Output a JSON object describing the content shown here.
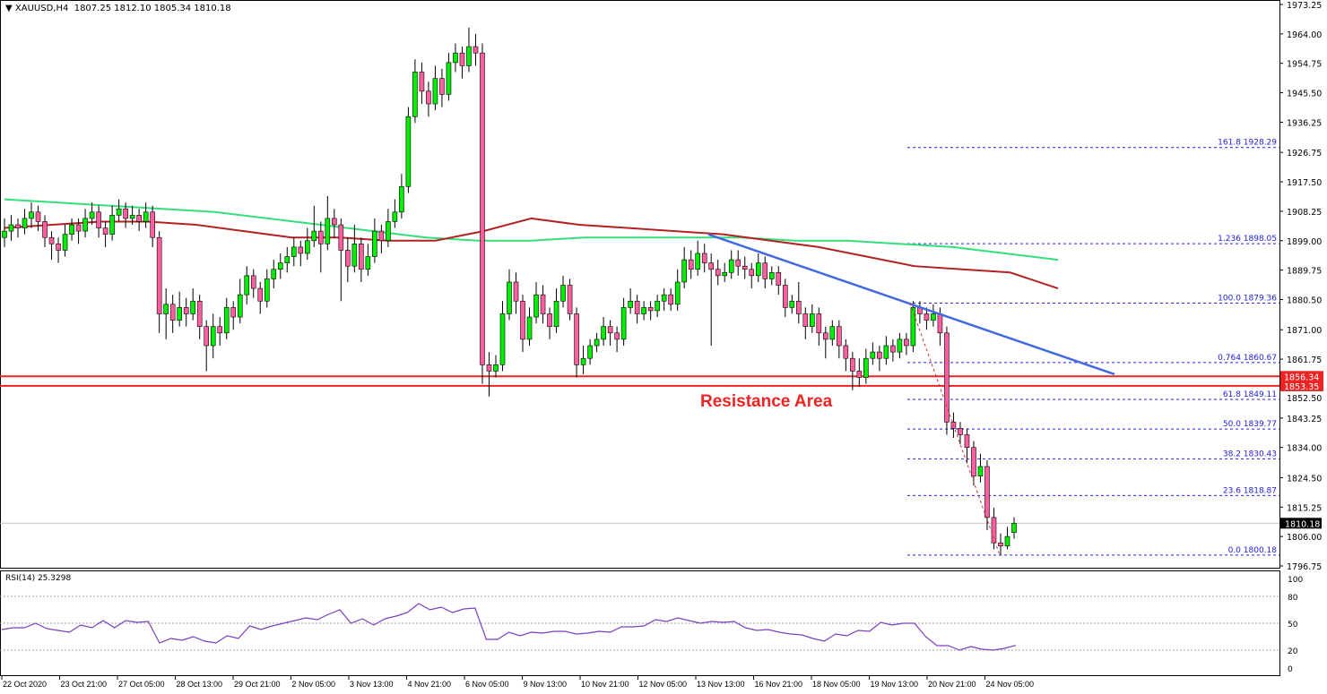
{
  "header": {
    "symbol": "XAUUSD,H4",
    "ohlc": "1807.25 1812.10 1805.34 1810.18"
  },
  "annotation": "Resistance Area",
  "rsi_label": "RSI(14) 25.3298",
  "colors": {
    "bull": "#00ee00",
    "bear": "#ff5fa0",
    "ma_red": "#b22222",
    "ma_green": "#32e07a",
    "trendline": "#4169e1",
    "fib": "#2020e0",
    "resistance": "#ee2424",
    "rsi": "#7b3fbf"
  },
  "chart_data": {
    "type": "candlestick",
    "title": "XAUUSD,H4",
    "ylim": [
      1796.75,
      1973.25
    ],
    "y_ticks": [
      "1973.25",
      "1964.00",
      "1954.75",
      "1945.50",
      "1936.25",
      "1926.75",
      "1917.50",
      "1908.25",
      "1899.00",
      "1889.75",
      "1880.50",
      "1871.00",
      "1861.75",
      "1852.50",
      "1843.25",
      "1834.00",
      "1824.50",
      "1815.25",
      "1806.00",
      "1796.75"
    ],
    "x_ticks": [
      "22 Oct 2020",
      "23 Oct 21:00",
      "27 Oct 05:00",
      "28 Oct 13:00",
      "29 Oct 21:00",
      "2 Nov 05:00",
      "3 Nov 13:00",
      "4 Nov 21:00",
      "6 Nov 05:00",
      "9 Nov 13:00",
      "10 Nov 21:00",
      "12 Nov 05:00",
      "13 Nov 13:00",
      "16 Nov 21:00",
      "18 Nov 05:00",
      "19 Nov 13:00",
      "20 Nov 21:00",
      "24 Nov 05:00"
    ],
    "current_price": "1810.18",
    "resistance_lines": [
      {
        "price": 1856.34,
        "label": "1856.34"
      },
      {
        "price": 1853.35,
        "label": "1853.35"
      }
    ],
    "fib_levels": [
      {
        "price": 1928.29,
        "label": "161.8 1928.29"
      },
      {
        "price": 1898.05,
        "label": "1.236 1898.05"
      },
      {
        "price": 1879.36,
        "label": "100.0 1879.36"
      },
      {
        "price": 1860.67,
        "label": "0.764 1860.67"
      },
      {
        "price": 1849.11,
        "label": "61.8 1849.11"
      },
      {
        "price": 1839.77,
        "label": "50.0 1839.77"
      },
      {
        "price": 1830.43,
        "label": "38.2 1830.43"
      },
      {
        "price": 1818.87,
        "label": "23.6 1818.87"
      },
      {
        "price": 1800.18,
        "label": "0.0 1800.18"
      }
    ],
    "trendline": {
      "from_price": 1901,
      "to_price": 1857
    },
    "fib_swing": {
      "from_price": 1879.36,
      "to_price": 1800.18
    },
    "candles": [
      [
        1900,
        1906,
        1897,
        1902
      ],
      [
        1902,
        1907,
        1899,
        1904
      ],
      [
        1904,
        1906,
        1900,
        1903
      ],
      [
        1903,
        1909,
        1901,
        1906
      ],
      [
        1906,
        1911,
        1903,
        1908
      ],
      [
        1908,
        1910,
        1902,
        1905
      ],
      [
        1905,
        1907,
        1897,
        1900
      ],
      [
        1900,
        1902,
        1893,
        1898
      ],
      [
        1898,
        1900,
        1892,
        1896
      ],
      [
        1896,
        1904,
        1894,
        1901
      ],
      [
        1901,
        1906,
        1899,
        1904
      ],
      [
        1904,
        1906,
        1898,
        1902
      ],
      [
        1902,
        1909,
        1900,
        1906
      ],
      [
        1906,
        1911,
        1904,
        1908
      ],
      [
        1908,
        1910,
        1900,
        1903
      ],
      [
        1903,
        1905,
        1897,
        1901
      ],
      [
        1901,
        1910,
        1899,
        1907
      ],
      [
        1907,
        1912,
        1905,
        1909
      ],
      [
        1909,
        1911,
        1903,
        1906
      ],
      [
        1906,
        1910,
        1904,
        1907
      ],
      [
        1907,
        1909,
        1902,
        1905
      ],
      [
        1905,
        1911,
        1903,
        1908
      ],
      [
        1908,
        1910,
        1897,
        1900
      ],
      [
        1900,
        1902,
        1870,
        1876
      ],
      [
        1876,
        1884,
        1868,
        1879
      ],
      [
        1879,
        1882,
        1870,
        1874
      ],
      [
        1874,
        1883,
        1872,
        1878
      ],
      [
        1878,
        1881,
        1872,
        1876
      ],
      [
        1876,
        1884,
        1874,
        1880
      ],
      [
        1880,
        1882,
        1868,
        1872
      ],
      [
        1872,
        1874,
        1858,
        1866
      ],
      [
        1866,
        1876,
        1862,
        1872
      ],
      [
        1872,
        1875,
        1866,
        1870
      ],
      [
        1870,
        1881,
        1868,
        1878
      ],
      [
        1878,
        1880,
        1871,
        1875
      ],
      [
        1875,
        1887,
        1873,
        1882
      ],
      [
        1882,
        1891,
        1879,
        1888
      ],
      [
        1888,
        1890,
        1881,
        1884
      ],
      [
        1884,
        1886,
        1876,
        1880
      ],
      [
        1880,
        1890,
        1878,
        1887
      ],
      [
        1887,
        1893,
        1884,
        1890
      ],
      [
        1890,
        1895,
        1887,
        1892
      ],
      [
        1892,
        1897,
        1889,
        1894
      ],
      [
        1894,
        1900,
        1891,
        1897
      ],
      [
        1897,
        1899,
        1891,
        1895
      ],
      [
        1895,
        1903,
        1893,
        1899
      ],
      [
        1899,
        1910,
        1897,
        1902
      ],
      [
        1902,
        1905,
        1889,
        1898
      ],
      [
        1898,
        1913,
        1896,
        1906
      ],
      [
        1906,
        1909,
        1900,
        1904
      ],
      [
        1904,
        1906,
        1880,
        1896
      ],
      [
        1896,
        1900,
        1886,
        1891
      ],
      [
        1891,
        1904,
        1889,
        1898
      ],
      [
        1898,
        1900,
        1886,
        1890
      ],
      [
        1890,
        1898,
        1888,
        1894
      ],
      [
        1894,
        1906,
        1892,
        1902
      ],
      [
        1902,
        1904,
        1895,
        1899
      ],
      [
        1899,
        1909,
        1897,
        1905
      ],
      [
        1905,
        1912,
        1903,
        1908
      ],
      [
        1908,
        1920,
        1906,
        1916
      ],
      [
        1916,
        1941,
        1914,
        1938
      ],
      [
        1938,
        1956,
        1936,
        1952
      ],
      [
        1952,
        1955,
        1942,
        1946
      ],
      [
        1946,
        1949,
        1938,
        1942
      ],
      [
        1942,
        1954,
        1940,
        1950
      ],
      [
        1950,
        1953,
        1941,
        1945
      ],
      [
        1945,
        1958,
        1943,
        1955
      ],
      [
        1955,
        1961,
        1952,
        1958
      ],
      [
        1958,
        1960,
        1950,
        1954
      ],
      [
        1954,
        1966,
        1952,
        1960
      ],
      [
        1960,
        1964,
        1954,
        1958
      ],
      [
        1958,
        1961,
        1854,
        1860
      ],
      [
        1860,
        1864,
        1850,
        1858
      ],
      [
        1858,
        1863,
        1856,
        1860
      ],
      [
        1860,
        1880,
        1858,
        1876
      ],
      [
        1876,
        1890,
        1874,
        1886
      ],
      [
        1886,
        1889,
        1876,
        1880
      ],
      [
        1880,
        1882,
        1864,
        1868
      ],
      [
        1868,
        1878,
        1866,
        1875
      ],
      [
        1875,
        1886,
        1873,
        1882
      ],
      [
        1882,
        1885,
        1873,
        1876
      ],
      [
        1876,
        1878,
        1868,
        1872
      ],
      [
        1872,
        1884,
        1870,
        1880
      ],
      [
        1880,
        1888,
        1878,
        1885
      ],
      [
        1885,
        1887,
        1874,
        1876
      ],
      [
        1876,
        1878,
        1856,
        1860
      ],
      [
        1860,
        1866,
        1857,
        1862
      ],
      [
        1862,
        1868,
        1860,
        1866
      ],
      [
        1866,
        1870,
        1864,
        1868
      ],
      [
        1868,
        1875,
        1866,
        1872
      ],
      [
        1872,
        1874,
        1866,
        1870
      ],
      [
        1870,
        1872,
        1864,
        1868
      ],
      [
        1868,
        1881,
        1866,
        1878
      ],
      [
        1878,
        1884,
        1876,
        1880
      ],
      [
        1880,
        1882,
        1873,
        1876
      ],
      [
        1876,
        1880,
        1874,
        1878
      ],
      [
        1878,
        1880,
        1874,
        1877
      ],
      [
        1877,
        1882,
        1875,
        1880
      ],
      [
        1880,
        1884,
        1877,
        1882
      ],
      [
        1882,
        1884,
        1877,
        1879
      ],
      [
        1879,
        1890,
        1877,
        1886
      ],
      [
        1886,
        1897,
        1884,
        1893
      ],
      [
        1893,
        1896,
        1887,
        1890
      ],
      [
        1890,
        1899,
        1888,
        1895
      ],
      [
        1895,
        1898,
        1889,
        1892
      ],
      [
        1892,
        1895,
        1866,
        1890
      ],
      [
        1890,
        1893,
        1885,
        1888
      ],
      [
        1888,
        1892,
        1886,
        1889
      ],
      [
        1889,
        1896,
        1887,
        1893
      ],
      [
        1893,
        1896,
        1888,
        1891
      ],
      [
        1891,
        1894,
        1887,
        1890
      ],
      [
        1890,
        1892,
        1884,
        1888
      ],
      [
        1888,
        1895,
        1886,
        1892
      ],
      [
        1892,
        1894,
        1884,
        1887
      ],
      [
        1887,
        1891,
        1885,
        1889
      ],
      [
        1889,
        1891,
        1882,
        1885
      ],
      [
        1885,
        1887,
        1875,
        1878
      ],
      [
        1878,
        1882,
        1876,
        1880
      ],
      [
        1880,
        1886,
        1873,
        1876
      ],
      [
        1876,
        1878,
        1868,
        1872
      ],
      [
        1872,
        1879,
        1870,
        1876
      ],
      [
        1876,
        1878,
        1866,
        1870
      ],
      [
        1870,
        1872,
        1862,
        1868
      ],
      [
        1868,
        1874,
        1866,
        1872
      ],
      [
        1872,
        1874,
        1862,
        1866
      ],
      [
        1866,
        1868,
        1858,
        1862
      ],
      [
        1862,
        1864,
        1852,
        1858
      ],
      [
        1858,
        1862,
        1853,
        1856
      ],
      [
        1856,
        1865,
        1854,
        1862
      ],
      [
        1862,
        1867,
        1860,
        1864
      ],
      [
        1864,
        1866,
        1858,
        1862
      ],
      [
        1862,
        1869,
        1860,
        1866
      ],
      [
        1866,
        1868,
        1861,
        1864
      ],
      [
        1864,
        1870,
        1862,
        1868
      ],
      [
        1868,
        1870,
        1863,
        1866
      ],
      [
        1866,
        1880,
        1864,
        1878
      ],
      [
        1878,
        1880,
        1873,
        1876
      ],
      [
        1876,
        1878,
        1871,
        1874
      ],
      [
        1874,
        1879,
        1872,
        1876
      ],
      [
        1876,
        1878,
        1866,
        1870
      ],
      [
        1870,
        1872,
        1838,
        1842
      ],
      [
        1842,
        1845,
        1837,
        1840
      ],
      [
        1840,
        1842,
        1835,
        1838
      ],
      [
        1838,
        1840,
        1829,
        1834
      ],
      [
        1834,
        1836,
        1822,
        1825
      ],
      [
        1825,
        1832,
        1823,
        1828
      ],
      [
        1828,
        1830,
        1808,
        1812
      ],
      [
        1812,
        1815,
        1802,
        1804
      ],
      [
        1804,
        1807,
        1800.18,
        1803
      ],
      [
        1803,
        1809,
        1802,
        1806
      ],
      [
        1807.25,
        1812.1,
        1805.34,
        1810.18
      ]
    ],
    "ma_red": [
      1903,
      1904,
      1905,
      1905,
      1904,
      1902,
      1900,
      1900,
      1899,
      1899,
      1902,
      1906,
      1904,
      1903,
      1902,
      1901,
      1899,
      1897,
      1894,
      1891,
      1890,
      1889,
      1884
    ],
    "ma_green": [
      1912,
      1911,
      1910,
      1909,
      1908,
      1906,
      1904,
      1902,
      1900,
      1899,
      1899,
      1900,
      1900,
      1900,
      1900,
      1899,
      1899,
      1898,
      1897,
      1895,
      1893
    ],
    "rsi": {
      "name": "RSI(14)",
      "last": 25.3298,
      "ylim": [
        0,
        100
      ],
      "levels": [
        "80",
        "50",
        "20"
      ],
      "ticks": [
        "100",
        "80",
        "50",
        "20",
        "0"
      ],
      "values": [
        43,
        45,
        45,
        50,
        44,
        42,
        40,
        48,
        45,
        53,
        45,
        53,
        51,
        52,
        28,
        33,
        31,
        35,
        30,
        28,
        36,
        33,
        47,
        43,
        47,
        50,
        53,
        56,
        54,
        60,
        65,
        50,
        55,
        48,
        55,
        58,
        62,
        72,
        65,
        68,
        62,
        66,
        67,
        32,
        32,
        40,
        36,
        40,
        39,
        41,
        41,
        38,
        39,
        41,
        40,
        46,
        46,
        47,
        54,
        52,
        56,
        53,
        50,
        52,
        51,
        52,
        45,
        42,
        43,
        40,
        38,
        37,
        33,
        30,
        38,
        36,
        42,
        41,
        51,
        48,
        50,
        50,
        35,
        25,
        25,
        20,
        24,
        21,
        20,
        22,
        25.33
      ]
    }
  }
}
